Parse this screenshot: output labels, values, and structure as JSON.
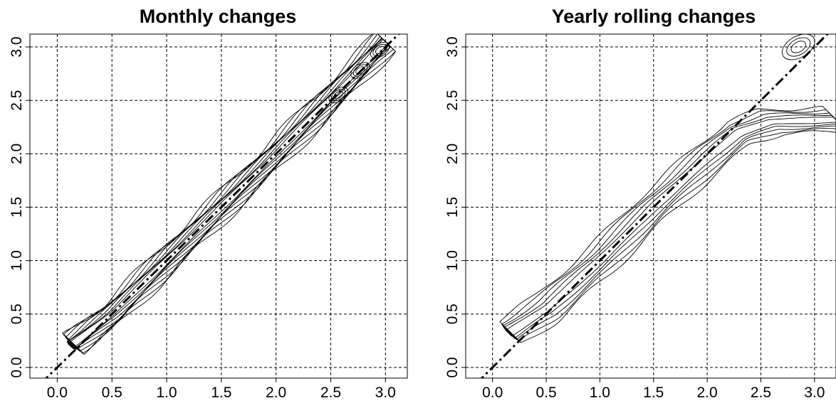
{
  "chart_data": [
    {
      "type": "contour",
      "title": "Monthly changes",
      "xlabel": "",
      "ylabel": "",
      "xlim": [
        -0.25,
        3.2
      ],
      "ylim": [
        -0.1,
        3.12
      ],
      "xticks": [
        "0.0",
        "0.5",
        "1.0",
        "1.5",
        "2.0",
        "2.5",
        "3.0"
      ],
      "yticks": [
        "0.0",
        "0.5",
        "1.0",
        "1.5",
        "2.0",
        "2.5",
        "3.0"
      ],
      "grid": true,
      "reference_line": {
        "type": "y=x",
        "style": "dash-dot"
      },
      "density_ridge": [
        [
          0.12,
          0.2
        ],
        [
          0.5,
          0.5
        ],
        [
          1.0,
          1.0
        ],
        [
          1.5,
          1.5
        ],
        [
          2.0,
          2.0
        ],
        [
          2.5,
          2.52
        ],
        [
          2.75,
          2.78
        ],
        [
          3.0,
          3.05
        ]
      ],
      "contour_levels": 8
    },
    {
      "type": "contour",
      "title": "Yearly rolling changes",
      "xlabel": "",
      "ylabel": "",
      "xlim": [
        -0.25,
        3.2
      ],
      "ylim": [
        -0.1,
        3.12
      ],
      "xticks": [
        "0.0",
        "0.5",
        "1.0",
        "1.5",
        "2.0",
        "2.5",
        "3.0"
      ],
      "yticks": [
        "0.0",
        "0.5",
        "1.0",
        "1.5",
        "2.0",
        "2.5",
        "3.0"
      ],
      "grid": true,
      "reference_line": {
        "type": "y=x",
        "style": "dash-dot"
      },
      "density_ridge": [
        [
          0.15,
          0.32
        ],
        [
          0.5,
          0.55
        ],
        [
          1.0,
          1.0
        ],
        [
          1.5,
          1.5
        ],
        [
          2.0,
          1.95
        ],
        [
          2.3,
          2.2
        ],
        [
          2.6,
          2.3
        ],
        [
          3.2,
          2.32
        ]
      ],
      "isolated_mode": [
        2.85,
        3.0
      ],
      "contour_levels": 5
    }
  ]
}
